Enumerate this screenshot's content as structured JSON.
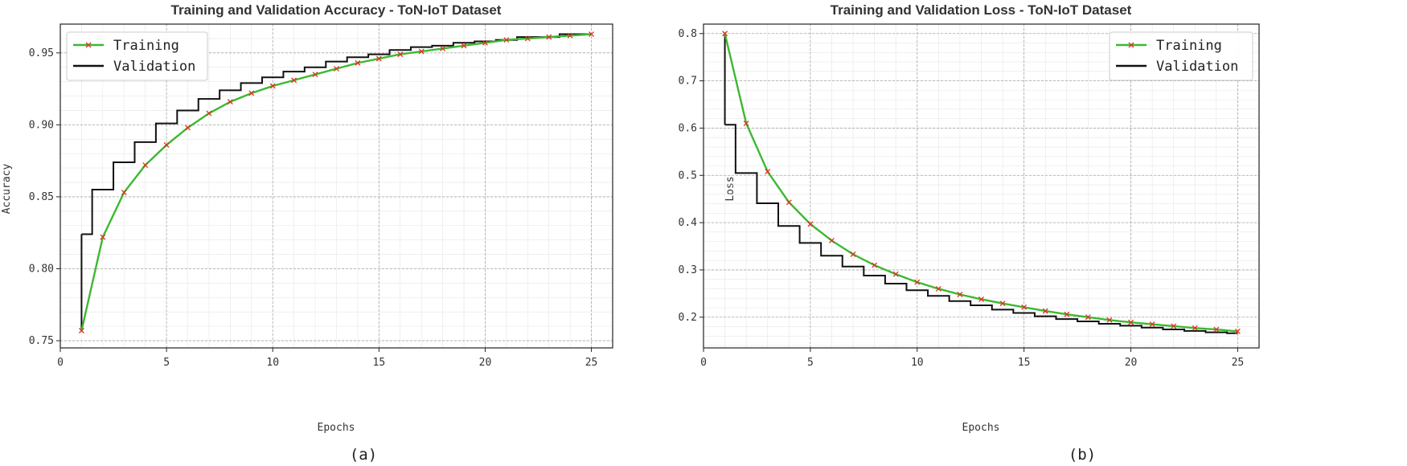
{
  "chart_data": [
    {
      "type": "line",
      "title": "Training and Validation Accuracy - ToN-IoT Dataset",
      "xlabel": "Epochs",
      "ylabel": "Accuracy",
      "caption": "(a)",
      "xlim": [
        0,
        26
      ],
      "ylim": [
        0.745,
        0.97
      ],
      "xticks": [
        0,
        5,
        10,
        15,
        20,
        25
      ],
      "yticks": [
        0.75,
        0.8,
        0.85,
        0.9,
        0.95
      ],
      "ytick_labels": [
        "0.75",
        "0.80",
        "0.85",
        "0.90",
        "0.95"
      ],
      "grid": true,
      "legend_position": "top-left",
      "x": [
        1,
        2,
        3,
        4,
        5,
        6,
        7,
        8,
        9,
        10,
        11,
        12,
        13,
        14,
        15,
        16,
        17,
        18,
        19,
        20,
        21,
        22,
        23,
        24,
        25
      ],
      "series": [
        {
          "name": "Training",
          "style": "line-with-x-markers",
          "color": "#3cb831",
          "marker_color": "#e0301e",
          "values": [
            0.757,
            0.822,
            0.853,
            0.872,
            0.886,
            0.898,
            0.908,
            0.916,
            0.922,
            0.927,
            0.931,
            0.935,
            0.939,
            0.943,
            0.946,
            0.949,
            0.951,
            0.953,
            0.955,
            0.957,
            0.959,
            0.96,
            0.961,
            0.962,
            0.963
          ]
        },
        {
          "name": "Validation",
          "style": "step",
          "color": "#111111",
          "values": [
            0.824,
            0.855,
            0.874,
            0.888,
            0.901,
            0.91,
            0.918,
            0.924,
            0.929,
            0.933,
            0.937,
            0.94,
            0.944,
            0.947,
            0.949,
            0.952,
            0.954,
            0.955,
            0.957,
            0.958,
            0.959,
            0.961,
            0.961,
            0.963,
            0.963
          ]
        }
      ]
    },
    {
      "type": "line",
      "title": "Training and Validation Loss - ToN-IoT Dataset",
      "xlabel": "Epochs",
      "ylabel": "Loss",
      "caption": "(b)",
      "xlim": [
        0,
        26
      ],
      "ylim": [
        0.135,
        0.82
      ],
      "xticks": [
        0,
        5,
        10,
        15,
        20,
        25
      ],
      "yticks": [
        0.2,
        0.3,
        0.4,
        0.5,
        0.6,
        0.7,
        0.8
      ],
      "ytick_labels": [
        "0.2",
        "0.3",
        "0.4",
        "0.5",
        "0.6",
        "0.7",
        "0.8"
      ],
      "grid": true,
      "legend_position": "top-right",
      "x": [
        1,
        2,
        3,
        4,
        5,
        6,
        7,
        8,
        9,
        10,
        11,
        12,
        13,
        14,
        15,
        16,
        17,
        18,
        19,
        20,
        21,
        22,
        23,
        24,
        25
      ],
      "series": [
        {
          "name": "Training",
          "style": "line-with-x-markers",
          "color": "#3cb831",
          "marker_color": "#e0301e",
          "values": [
            0.8,
            0.61,
            0.508,
            0.443,
            0.397,
            0.362,
            0.333,
            0.31,
            0.291,
            0.274,
            0.26,
            0.248,
            0.238,
            0.229,
            0.221,
            0.213,
            0.206,
            0.2,
            0.194,
            0.189,
            0.185,
            0.181,
            0.177,
            0.174,
            0.17
          ]
        },
        {
          "name": "Validation",
          "style": "step",
          "color": "#111111",
          "values": [
            0.607,
            0.505,
            0.441,
            0.393,
            0.357,
            0.33,
            0.307,
            0.288,
            0.271,
            0.257,
            0.245,
            0.234,
            0.225,
            0.216,
            0.209,
            0.202,
            0.196,
            0.191,
            0.186,
            0.182,
            0.178,
            0.174,
            0.171,
            0.168,
            0.166
          ]
        }
      ]
    }
  ]
}
